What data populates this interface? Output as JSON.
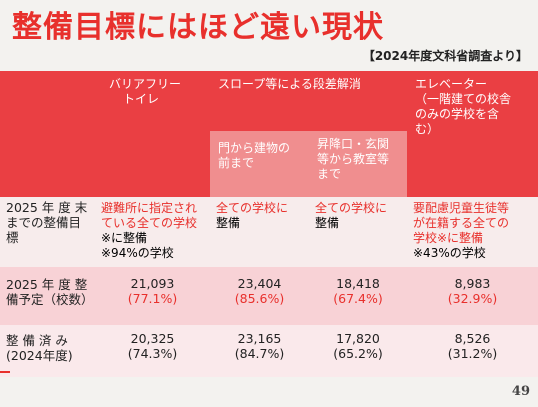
{
  "title": "整備目標にはほど遠い現状",
  "source": "【2024年度文科省調査より】",
  "columns": {
    "toilet": [
      "バリアフリー",
      "トイレ"
    ],
    "slope": "スロープ等による段差解消",
    "slope_gate": [
      "門から建物の",
      "前まで"
    ],
    "slope_entrance": [
      "昇降口・玄関",
      "等から教室等",
      "まで"
    ],
    "elevator": [
      "エレベーター",
      "（一階建ての校舎",
      "のみの学校を含",
      "む）"
    ]
  },
  "rows": {
    "target": {
      "label": [
        "2025 年 度 末",
        "までの整備目",
        "標"
      ],
      "toilet": [
        "避難所に指定され",
        "ている全ての学校",
        "※に整備",
        "※94%の学校"
      ],
      "slope_gate": [
        "全ての学校に",
        "整備"
      ],
      "slope_entrance": [
        "全ての学校に",
        "整備"
      ],
      "elevator": [
        "要配慮児童生徒等",
        "が在籍する全ての",
        "学校※に整備",
        "※43%の学校"
      ]
    },
    "planned": {
      "label": [
        "2025 年 度 整",
        "備予定（校数）"
      ],
      "toilet": {
        "value": "21,093",
        "pct": "(77.1%)"
      },
      "slope_gate": {
        "value": "23,404",
        "pct": "(85.6%)"
      },
      "slope_entrance": {
        "value": "18,418",
        "pct": "(67.4%)"
      },
      "elevator": {
        "value": "8,983",
        "pct": "(32.9%)"
      }
    },
    "done": {
      "label": [
        "整 備 済 み",
        "(2024年度)"
      ],
      "toilet": {
        "value": "20,325",
        "pct": "(74.3%)"
      },
      "slope_gate": {
        "value": "23,165",
        "pct": "(84.7%)"
      },
      "slope_entrance": {
        "value": "17,820",
        "pct": "(65.2%)"
      },
      "elevator": {
        "value": "8,526",
        "pct": "(31.2%)"
      }
    }
  },
  "page_number": "49",
  "colors": {
    "title_red": "#e8302c",
    "header_red": "#ea3f43",
    "subheader_pink": "#f08e8f",
    "row_pink": "#f8d2d6"
  }
}
